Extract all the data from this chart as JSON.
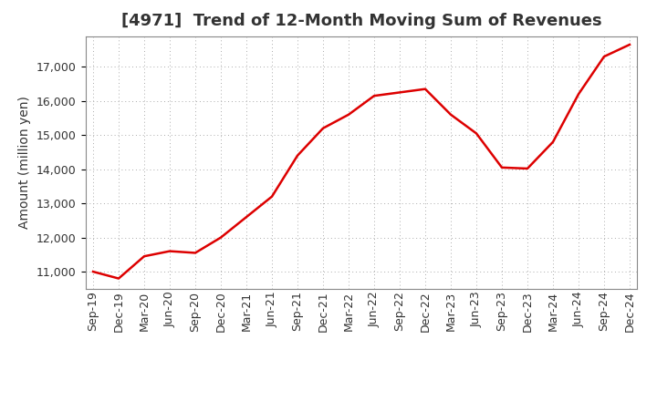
{
  "title": "[4971]  Trend of 12-Month Moving Sum of Revenues",
  "ylabel": "Amount (million yen)",
  "line_color": "#dd0000",
  "background_color": "#ffffff",
  "plot_bg_color": "#ffffff",
  "grid_color": "#aaaaaa",
  "title_color": "#333333",
  "x_labels": [
    "Sep-19",
    "Dec-19",
    "Mar-20",
    "Jun-20",
    "Sep-20",
    "Dec-20",
    "Mar-21",
    "Jun-21",
    "Sep-21",
    "Dec-21",
    "Mar-22",
    "Jun-22",
    "Sep-22",
    "Dec-22",
    "Mar-23",
    "Jun-23",
    "Sep-23",
    "Dec-23",
    "Mar-24",
    "Jun-24",
    "Sep-24",
    "Dec-24"
  ],
  "y_values": [
    11000,
    10800,
    11450,
    11600,
    11550,
    12000,
    12600,
    13200,
    14400,
    15200,
    15600,
    16150,
    16250,
    16350,
    15600,
    15050,
    14050,
    14020,
    14800,
    16200,
    17300,
    17650
  ],
  "ylim": [
    10500,
    17900
  ],
  "yticks": [
    11000,
    12000,
    13000,
    14000,
    15000,
    16000,
    17000
  ],
  "title_fontsize": 13,
  "axis_label_fontsize": 10,
  "tick_fontsize": 9
}
